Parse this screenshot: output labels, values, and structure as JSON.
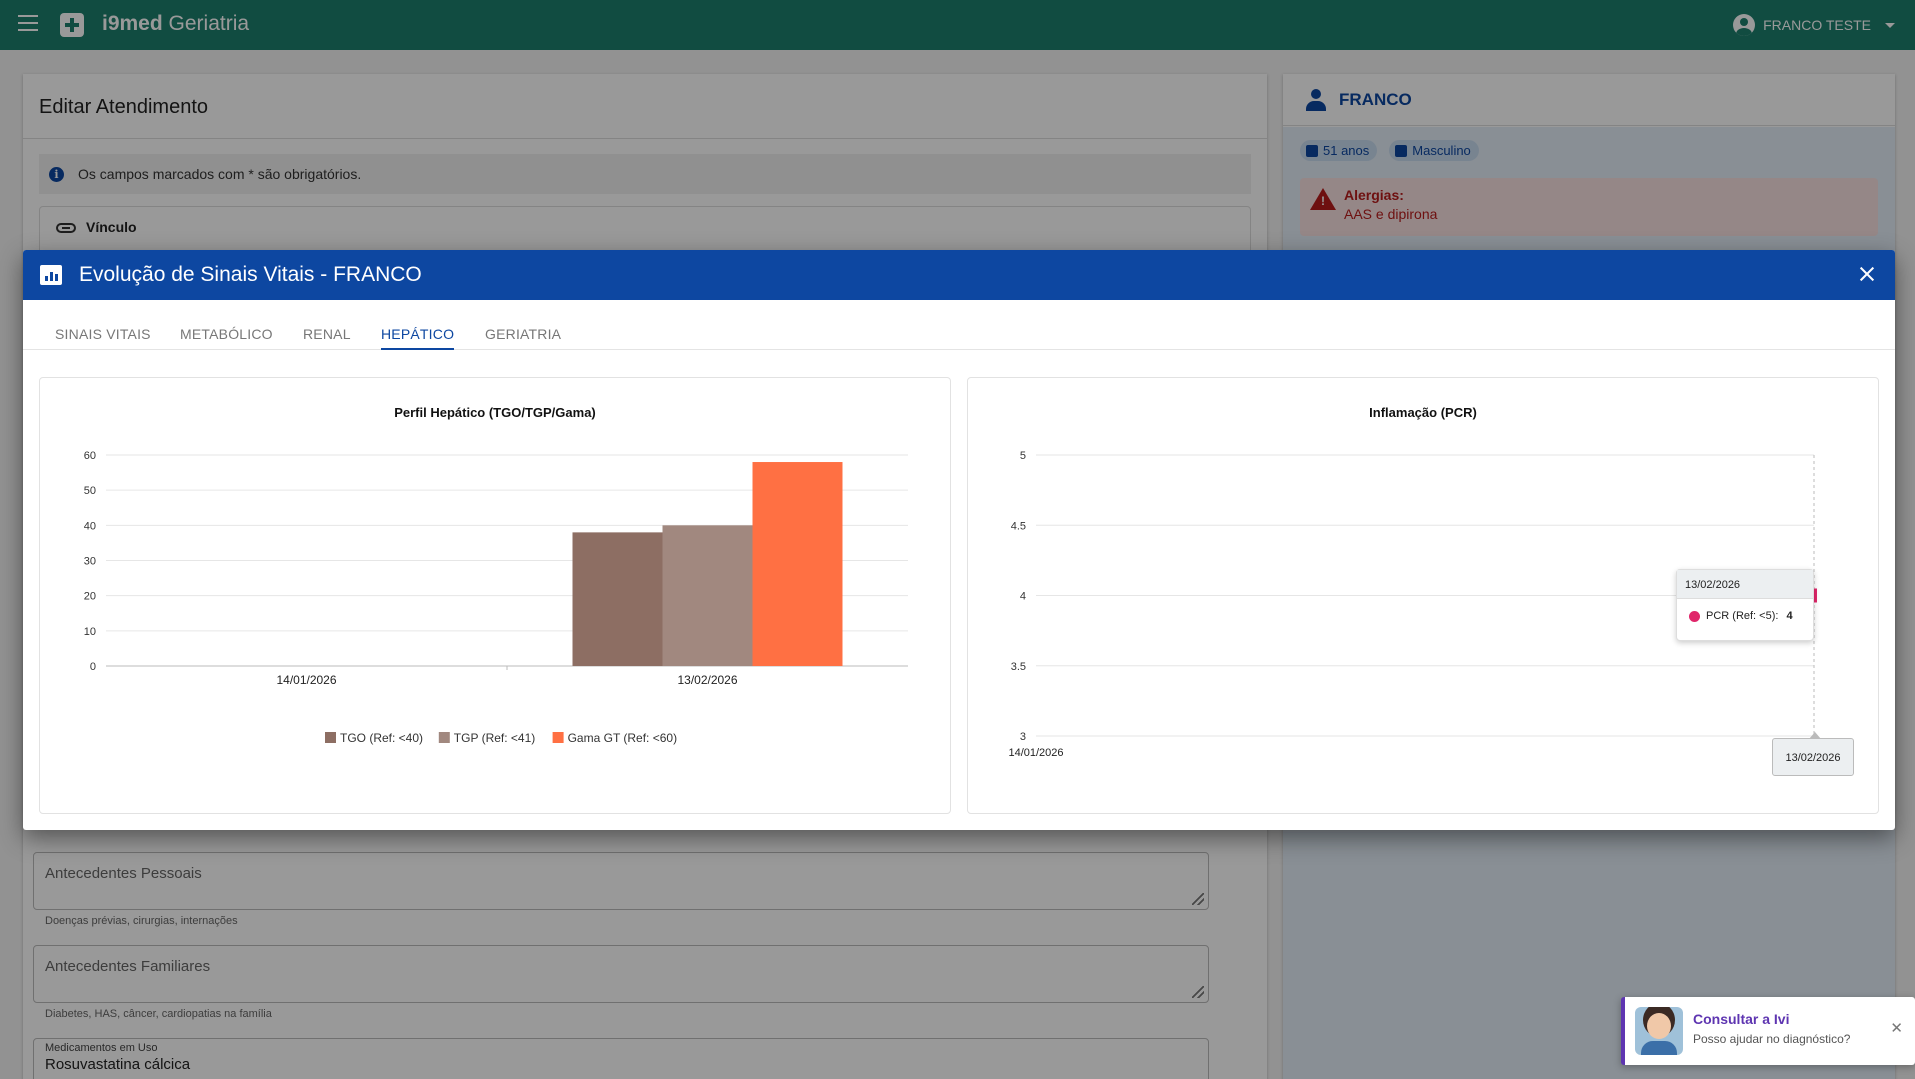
{
  "app": {
    "brand_bold": "i9med",
    "brand_rest": " Geriatria",
    "user_name": "FRANCO TESTE"
  },
  "form": {
    "title": "Editar Atendimento",
    "required_notice": "Os campos marcados com * são obrigatórios.",
    "vinculo_label": "Vínculo",
    "antecedentes_pessoais": {
      "placeholder": "Antecedentes Pessoais",
      "helper": "Doenças prévias, cirurgias, internações"
    },
    "antecedentes_familiares": {
      "placeholder": "Antecedentes Familiares",
      "helper": "Diabetes, HAS, câncer, cardiopatias na família"
    },
    "medicamentos": {
      "label": "Medicamentos em Uso",
      "value": "Rosuvastatina cálcica"
    }
  },
  "patient": {
    "name": "FRANCO",
    "age": "51 anos",
    "sex": "Masculino",
    "allergies_label": "Alergias:",
    "allergies": "AAS e dipirona"
  },
  "dialog": {
    "title": "Evolução de Sinais Vitais - FRANCO",
    "tabs": [
      "SINAIS VITAIS",
      "METABÓLICO",
      "RENAL",
      "HEPÁTICO",
      "GERIATRIA"
    ],
    "active_tab": "HEPÁTICO"
  },
  "colors": {
    "tgo": "#8d6e63",
    "tgp": "#a1887f",
    "gama": "#ff7043",
    "pcr": "#e0266a",
    "primary": "#0d47a1",
    "appbar": "#1d7f6d"
  },
  "chart_data": [
    {
      "type": "bar",
      "title": "Perfil Hepático (TGO/TGP/Gama)",
      "categories": [
        "14/01/2026",
        "13/02/2026"
      ],
      "series": [
        {
          "name": "TGO (Ref: <40)",
          "values": [
            null,
            38
          ]
        },
        {
          "name": "TGP (Ref: <41)",
          "values": [
            null,
            40
          ]
        },
        {
          "name": "Gama GT (Ref: <60)",
          "values": [
            null,
            58
          ]
        }
      ],
      "ylim": [
        0,
        60
      ],
      "yticks": [
        0,
        10,
        20,
        30,
        40,
        50,
        60
      ],
      "legend": "bottom",
      "grid": true
    },
    {
      "type": "line",
      "title": "Inflamação (PCR)",
      "x": [
        "14/01/2026",
        "13/02/2026"
      ],
      "series": [
        {
          "name": "PCR (Ref: <5)",
          "values": [
            null,
            4
          ]
        }
      ],
      "ylim": [
        3,
        5
      ],
      "yticks": [
        3,
        3.5,
        4,
        4.5,
        5
      ],
      "yticklabels": [
        "3",
        "3.5",
        "4",
        "4.5",
        "5"
      ],
      "grid": true,
      "tooltip": {
        "date": "13/02/2026",
        "label": "PCR (Ref: <5):",
        "value": "4"
      }
    }
  ],
  "assistant": {
    "title": "Consultar a Ivi",
    "subtitle": "Posso ajudar no diagnóstico?",
    "close": "✕"
  }
}
